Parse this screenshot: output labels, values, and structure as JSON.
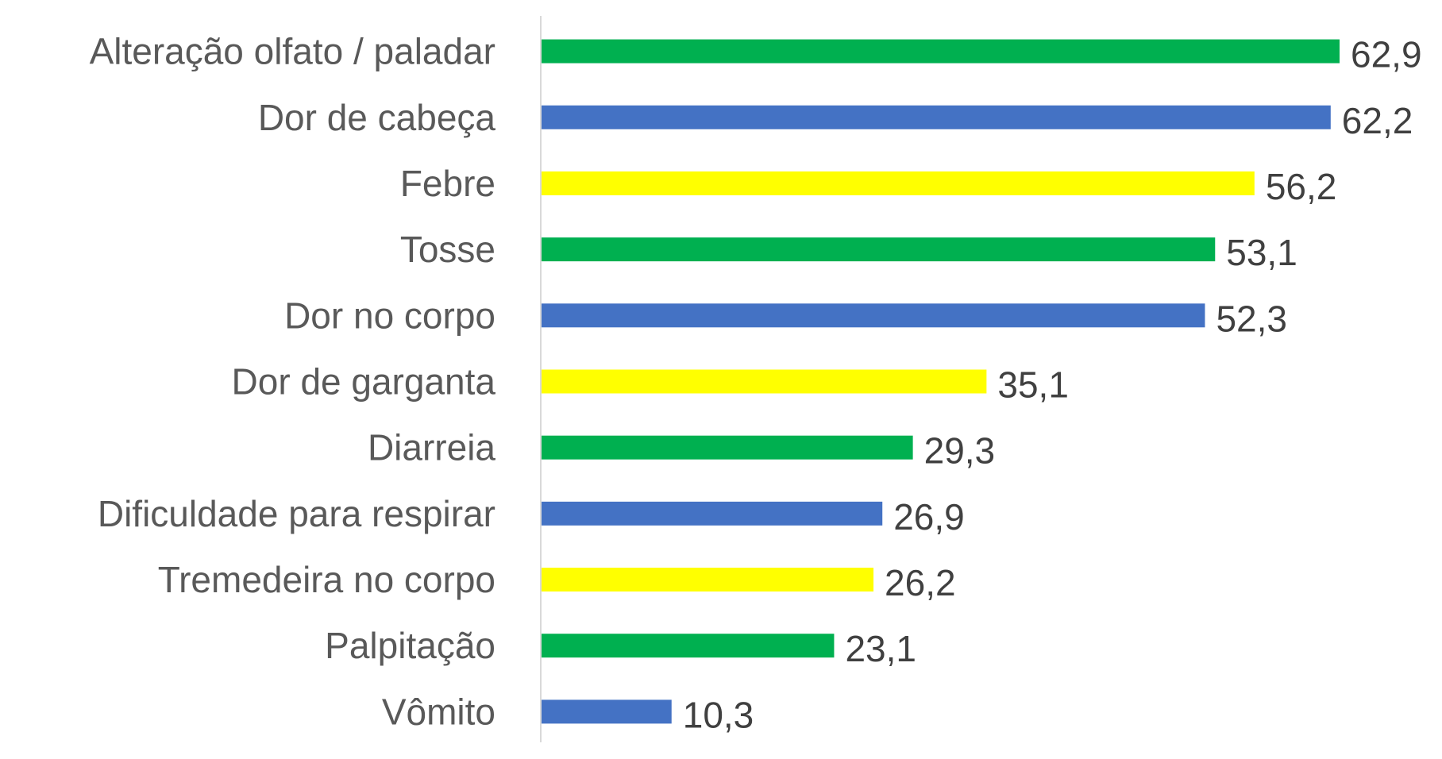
{
  "chart_data": {
    "type": "bar",
    "orientation": "horizontal",
    "categories": [
      "Alteração olfato / paladar",
      "Dor de cabeça",
      "Febre",
      "Tosse",
      "Dor no corpo",
      "Dor de garganta",
      "Diarreia",
      "Dificuldade para respirar",
      "Tremedeira no corpo",
      "Palpitação",
      "Vômito"
    ],
    "values": [
      62.9,
      62.2,
      56.2,
      53.1,
      52.3,
      35.1,
      29.3,
      26.9,
      26.2,
      23.1,
      10.3
    ],
    "value_labels": [
      "62,9",
      "62,2",
      "56,2",
      "53,1",
      "52,3",
      "35,1",
      "29,3",
      "26,9",
      "26,2",
      "23,1",
      "10,3"
    ],
    "bar_colors": [
      "#00B050",
      "#4472C4",
      "#FFFF00",
      "#00B050",
      "#4472C4",
      "#FFFF00",
      "#00B050",
      "#4472C4",
      "#FFFF00",
      "#00B050",
      "#4472C4"
    ],
    "xlim": [
      0,
      66
    ],
    "grid": false,
    "title": "",
    "xlabel": "",
    "ylabel": "",
    "legend": "none",
    "axis_color": "#D9D9D9"
  }
}
